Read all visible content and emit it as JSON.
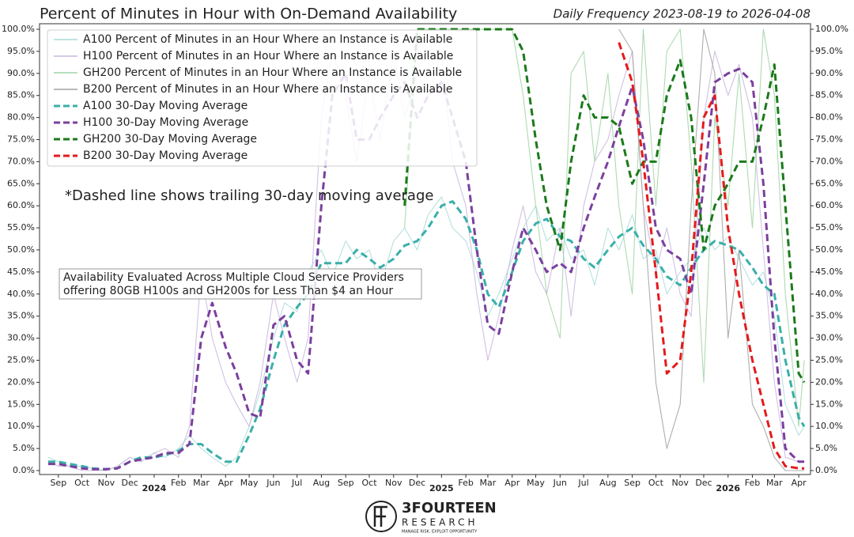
{
  "chart_data": {
    "type": "line",
    "title": "Percent of Minutes in Hour with On-Demand Availability",
    "subtitle": "Daily Frequency 2023-08-19 to 2026-04-08",
    "annotation": "*Dashed line shows trailing 30-day moving average",
    "note": [
      "Availability Evaluated Across Multiple Cloud Service Providers",
      "offering 80GB H100s and GH200s for Less Than $4 an Hour"
    ],
    "legend": "upper left",
    "x": [
      "2023-08-19",
      "2023-09-01",
      "2023-09-15",
      "2023-10-01",
      "2023-10-15",
      "2023-11-01",
      "2023-11-15",
      "2023-12-01",
      "2023-12-15",
      "2024-01-01",
      "2024-01-15",
      "2024-02-01",
      "2024-02-15",
      "2024-03-01",
      "2024-03-15",
      "2024-04-01",
      "2024-04-15",
      "2024-05-01",
      "2024-05-15",
      "2024-06-01",
      "2024-06-15",
      "2024-07-01",
      "2024-07-15",
      "2024-08-01",
      "2024-08-15",
      "2024-09-01",
      "2024-09-15",
      "2024-10-01",
      "2024-10-15",
      "2024-11-01",
      "2024-11-15",
      "2024-12-01",
      "2024-12-15",
      "2025-01-01",
      "2025-01-15",
      "2025-02-01",
      "2025-02-15",
      "2025-03-01",
      "2025-03-15",
      "2025-04-01",
      "2025-04-15",
      "2025-05-01",
      "2025-05-15",
      "2025-06-01",
      "2025-06-15",
      "2025-07-01",
      "2025-07-15",
      "2025-08-01",
      "2025-08-15",
      "2025-09-01",
      "2025-09-15",
      "2025-10-01",
      "2025-10-15",
      "2025-11-01",
      "2025-11-15",
      "2025-12-01",
      "2025-12-15",
      "2026-01-01",
      "2026-01-15",
      "2026-02-01",
      "2026-02-15",
      "2026-03-01",
      "2026-03-15",
      "2026-04-01",
      "2026-04-08"
    ],
    "xlim": [
      "2023-08-08",
      "2026-04-16"
    ],
    "xticks": [
      {
        "value": "2023-09-01",
        "label": "Sep"
      },
      {
        "value": "2023-10-01",
        "label": "Oct"
      },
      {
        "value": "2023-11-01",
        "label": "Nov"
      },
      {
        "value": "2023-12-01",
        "label": "Dec"
      },
      {
        "value": "2024-01-01",
        "label": "2024"
      },
      {
        "value": "2024-02-01",
        "label": "Feb"
      },
      {
        "value": "2024-03-01",
        "label": "Mar"
      },
      {
        "value": "2024-04-01",
        "label": "Apr"
      },
      {
        "value": "2024-05-01",
        "label": "May"
      },
      {
        "value": "2024-06-01",
        "label": "Jun"
      },
      {
        "value": "2024-07-01",
        "label": "Jul"
      },
      {
        "value": "2024-08-01",
        "label": "Aug"
      },
      {
        "value": "2024-09-01",
        "label": "Sep"
      },
      {
        "value": "2024-10-01",
        "label": "Oct"
      },
      {
        "value": "2024-11-01",
        "label": "Nov"
      },
      {
        "value": "2024-12-01",
        "label": "Dec"
      },
      {
        "value": "2025-01-01",
        "label": "2025"
      },
      {
        "value": "2025-02-01",
        "label": "Feb"
      },
      {
        "value": "2025-03-01",
        "label": "Mar"
      },
      {
        "value": "2025-04-01",
        "label": "Apr"
      },
      {
        "value": "2025-05-01",
        "label": "May"
      },
      {
        "value": "2025-06-01",
        "label": "Jun"
      },
      {
        "value": "2025-07-01",
        "label": "Jul"
      },
      {
        "value": "2025-08-01",
        "label": "Aug"
      },
      {
        "value": "2025-09-01",
        "label": "Sep"
      },
      {
        "value": "2025-10-01",
        "label": "Oct"
      },
      {
        "value": "2025-11-01",
        "label": "Nov"
      },
      {
        "value": "2025-12-01",
        "label": "Dec"
      },
      {
        "value": "2026-01-01",
        "label": "2026"
      },
      {
        "value": "2026-02-01",
        "label": "Feb"
      },
      {
        "value": "2026-03-01",
        "label": "Mar"
      },
      {
        "value": "2026-04-01",
        "label": "Apr"
      }
    ],
    "ylim": [
      0,
      100
    ],
    "yticks": [
      {
        "value": 0,
        "label": "0.0%"
      },
      {
        "value": 5,
        "label": "5.0%"
      },
      {
        "value": 10,
        "label": "10.0%"
      },
      {
        "value": 15,
        "label": "15.0%"
      },
      {
        "value": 20,
        "label": "20.0%"
      },
      {
        "value": 25,
        "label": "25.0%"
      },
      {
        "value": 30,
        "label": "30.0%"
      },
      {
        "value": 35,
        "label": "35.0%"
      },
      {
        "value": 40,
        "label": "40.0%"
      },
      {
        "value": 45,
        "label": "45.0%"
      },
      {
        "value": 50,
        "label": "50.0%"
      },
      {
        "value": 55,
        "label": "55.0%"
      },
      {
        "value": 60,
        "label": "60.0%"
      },
      {
        "value": 65,
        "label": "65.0%"
      },
      {
        "value": 70,
        "label": "70.0%"
      },
      {
        "value": 75,
        "label": "75.0%"
      },
      {
        "value": 80,
        "label": "80.0%"
      },
      {
        "value": 85,
        "label": "85.0%"
      },
      {
        "value": 90,
        "label": "90.0%"
      },
      {
        "value": 95,
        "label": "95.0%"
      },
      {
        "value": 100,
        "label": "100.0%"
      }
    ],
    "y2lim": [
      0,
      100
    ],
    "y2ticks": [
      {
        "value": 0,
        "label": "0.0%"
      },
      {
        "value": 5,
        "label": "5.0%"
      },
      {
        "value": 10,
        "label": "10.0%"
      },
      {
        "value": 15,
        "label": "15.0%"
      },
      {
        "value": 20,
        "label": "20.0%"
      },
      {
        "value": 25,
        "label": "25.0%"
      },
      {
        "value": 30,
        "label": "30.0%"
      },
      {
        "value": 35,
        "label": "35.0%"
      },
      {
        "value": 40,
        "label": "40.0%"
      },
      {
        "value": 45,
        "label": "45.0%"
      },
      {
        "value": 50,
        "label": "50.0%"
      },
      {
        "value": 55,
        "label": "55.0%"
      },
      {
        "value": 60,
        "label": "60.0%"
      },
      {
        "value": 65,
        "label": "65.0%"
      },
      {
        "value": 70,
        "label": "70.0%"
      },
      {
        "value": 75,
        "label": "75.0%"
      },
      {
        "value": 80,
        "label": "80.0%"
      },
      {
        "value": 85,
        "label": "85.0%"
      },
      {
        "value": 90,
        "label": "90.0%"
      },
      {
        "value": 95,
        "label": "95.0%"
      },
      {
        "value": 100,
        "label": "100.0%"
      }
    ],
    "series": [
      {
        "name": "A100 Percent of Minutes in an Hour Where an Instance is Available",
        "color": "#a9dcd8",
        "dashed": false,
        "values": [
          3,
          2,
          1,
          1,
          0.5,
          0,
          1,
          3,
          2,
          4,
          3,
          5,
          8,
          5,
          3,
          1,
          3,
          10,
          18,
          30,
          38,
          36,
          45,
          50,
          44,
          52,
          48,
          50,
          42,
          52,
          55,
          50,
          58,
          62,
          55,
          52,
          45,
          35,
          40,
          48,
          55,
          60,
          52,
          55,
          48,
          50,
          42,
          55,
          50,
          58,
          48,
          50,
          40,
          45,
          48,
          55,
          50,
          53,
          48,
          42,
          45,
          35,
          15,
          8,
          10
        ]
      },
      {
        "name": "H100 Percent of Minutes in an Hour Where an Instance is Available",
        "color": "#c8b6de",
        "dashed": false,
        "values": [
          2,
          1,
          1,
          0,
          0,
          0,
          1,
          3,
          2,
          4,
          5,
          3,
          10,
          45,
          30,
          20,
          15,
          10,
          20,
          40,
          30,
          20,
          30,
          80,
          95,
          85,
          70,
          90,
          75,
          95,
          80,
          90,
          85,
          95,
          70,
          60,
          40,
          25,
          35,
          50,
          60,
          45,
          40,
          55,
          35,
          60,
          70,
          75,
          85,
          95,
          60,
          45,
          55,
          40,
          35,
          80,
          95,
          85,
          92,
          80,
          50,
          20,
          3,
          2,
          2
        ]
      },
      {
        "name": "GH200 Percent of Minutes in an Hour Where an Instance is Available",
        "color": "#9fd3a5",
        "dashed": false,
        "values": [
          null,
          null,
          null,
          null,
          null,
          null,
          null,
          null,
          null,
          null,
          null,
          null,
          null,
          null,
          null,
          null,
          null,
          null,
          null,
          null,
          null,
          null,
          null,
          null,
          null,
          null,
          null,
          null,
          null,
          null,
          55,
          100,
          100,
          100,
          100,
          100,
          100,
          100,
          100,
          100,
          85,
          60,
          40,
          30,
          90,
          95,
          70,
          90,
          60,
          40,
          100,
          60,
          95,
          100,
          70,
          20,
          80,
          60,
          90,
          55,
          100,
          85,
          40,
          10,
          25
        ]
      },
      {
        "name": "B200 Percent of Minutes in an Hour Where an Instance is Available",
        "color": "#a0a0a0",
        "dashed": false,
        "values": [
          null,
          null,
          null,
          null,
          null,
          null,
          null,
          null,
          null,
          null,
          null,
          null,
          null,
          null,
          null,
          null,
          null,
          null,
          null,
          null,
          null,
          null,
          null,
          null,
          null,
          null,
          null,
          null,
          null,
          null,
          null,
          null,
          null,
          null,
          null,
          null,
          null,
          null,
          null,
          null,
          null,
          null,
          null,
          null,
          null,
          null,
          null,
          null,
          100,
          95,
          60,
          20,
          5,
          15,
          60,
          100,
          90,
          30,
          50,
          15,
          10,
          3,
          0,
          0,
          0
        ]
      },
      {
        "name": "A100 30-Day Moving Average",
        "color": "#3aafa9",
        "dashed": true,
        "values": [
          2,
          2,
          1.5,
          1,
          0.5,
          0.3,
          0.5,
          2,
          3,
          3,
          3.5,
          4.5,
          6,
          6,
          4,
          2,
          2,
          8,
          14,
          25,
          33,
          37,
          40,
          47,
          47,
          47,
          50,
          48,
          46,
          48,
          51,
          52,
          55,
          60,
          61,
          57,
          50,
          40,
          37,
          45,
          52,
          56,
          57,
          53,
          52,
          48,
          46,
          50,
          53,
          55,
          51,
          48,
          44,
          42,
          46,
          50,
          52,
          51,
          50,
          46,
          42,
          40,
          25,
          12,
          10
        ]
      },
      {
        "name": "H100 30-Day Moving Average",
        "color": "#7b3f9e",
        "dashed": true,
        "values": [
          1.5,
          1.5,
          1,
          0.5,
          0.3,
          0.3,
          0.5,
          2,
          2.5,
          3,
          4,
          4,
          6,
          30,
          38,
          28,
          22,
          13,
          12,
          33,
          35,
          25,
          22,
          60,
          85,
          90,
          75,
          75,
          80,
          85,
          88,
          80,
          85,
          88,
          80,
          70,
          50,
          33,
          31,
          45,
          55,
          50,
          45,
          47,
          45,
          55,
          62,
          70,
          78,
          87,
          75,
          55,
          50,
          48,
          40,
          65,
          88,
          90,
          91,
          88,
          65,
          30,
          5,
          2,
          2
        ]
      },
      {
        "name": "GH200 30-Day Moving Average",
        "color": "#1a7a1a",
        "dashed": true,
        "values": [
          null,
          null,
          null,
          null,
          null,
          null,
          null,
          null,
          null,
          null,
          null,
          null,
          null,
          null,
          null,
          null,
          null,
          null,
          null,
          null,
          null,
          null,
          null,
          null,
          null,
          null,
          null,
          null,
          null,
          null,
          60,
          100,
          100,
          100,
          100,
          100,
          100,
          100,
          100,
          100,
          95,
          75,
          60,
          50,
          70,
          85,
          80,
          80,
          78,
          65,
          70,
          70,
          85,
          93,
          80,
          50,
          60,
          65,
          70,
          70,
          80,
          92,
          60,
          22,
          20
        ]
      },
      {
        "name": "B200 30-Day Moving Average",
        "color": "#e41a1c",
        "dashed": true,
        "values": [
          null,
          null,
          null,
          null,
          null,
          null,
          null,
          null,
          null,
          null,
          null,
          null,
          null,
          null,
          null,
          null,
          null,
          null,
          null,
          null,
          null,
          null,
          null,
          null,
          null,
          null,
          null,
          null,
          null,
          null,
          null,
          null,
          null,
          null,
          null,
          null,
          null,
          null,
          null,
          null,
          null,
          null,
          null,
          null,
          null,
          null,
          null,
          null,
          97,
          88,
          70,
          45,
          22,
          25,
          45,
          80,
          85,
          55,
          40,
          25,
          15,
          5,
          1,
          0.5,
          0.5
        ]
      }
    ]
  },
  "logo": {
    "name": "3FOURTEEN",
    "subtitle": "RESEARCH",
    "tagline": "MANAGE RISK. EXPLOIT OPPORTUNITY"
  }
}
